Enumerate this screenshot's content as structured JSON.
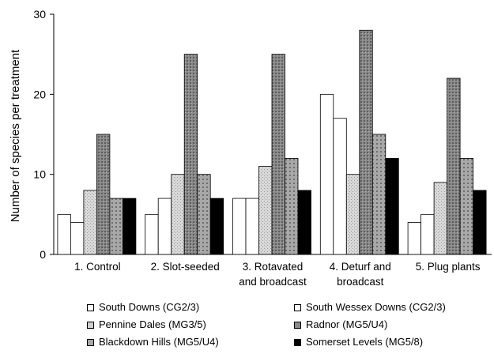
{
  "chart_data": {
    "type": "bar",
    "title": "",
    "xlabel": "",
    "ylabel": "Number of species per treatment",
    "ylim": [
      0,
      30
    ],
    "yticks": [
      0,
      10,
      20,
      30
    ],
    "grid": false,
    "legend_position": "bottom",
    "categories": [
      [
        "1. Control"
      ],
      [
        "2. Slot-seeded"
      ],
      [
        "3. Rotavated",
        "and broadcast"
      ],
      [
        "4. Deturf and",
        "broadcast"
      ],
      [
        "5. Plug plants"
      ]
    ],
    "series": [
      {
        "name": "South Downs (CG2/3)",
        "color": "#ffffff",
        "values": [
          5,
          5,
          7,
          20,
          4
        ]
      },
      {
        "name": "South Wessex Downs (CG2/3)",
        "color": "#ffffff",
        "values": [
          4,
          7,
          7,
          17,
          5
        ]
      },
      {
        "name": "Pennine Dales (MG3/5)",
        "color": "#cfcfcf",
        "values": [
          8,
          10,
          11,
          10,
          9
        ]
      },
      {
        "name": "Radnor (MG5/U4)",
        "color": "#8a8a8a",
        "values": [
          15,
          25,
          25,
          28,
          22
        ]
      },
      {
        "name": "Blackdown Hills (MG5/U4)",
        "color": "#a6a6a6",
        "values": [
          7,
          10,
          12,
          15,
          12
        ]
      },
      {
        "name": "Somerset Levels (MG5/8)",
        "color": "#000000",
        "values": [
          7,
          7,
          8,
          12,
          8
        ]
      }
    ]
  }
}
